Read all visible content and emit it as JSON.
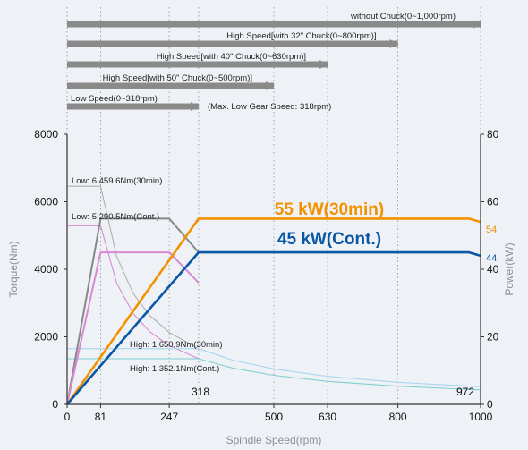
{
  "chart_data": {
    "type": "line",
    "xlabel": "Spindle Speed(rpm)",
    "ylabel_left": "Torque(Nm)",
    "ylabel_right": "Power(kW)",
    "xlim": [
      0,
      1000
    ],
    "ylim_left": [
      0,
      8000
    ],
    "ylim_right": [
      0,
      80
    ],
    "x_ticks": [
      "0",
      "81",
      "247",
      "500",
      "630",
      "800",
      "1000"
    ],
    "x_tick_values": [
      0,
      81,
      247,
      500,
      630,
      800,
      1000
    ],
    "y_left_ticks": [
      0,
      2000,
      4000,
      6000,
      8000
    ],
    "y_right_ticks": [
      0,
      20,
      40,
      60,
      80
    ],
    "grid": "dotted vertical at 81, 247, 318, 500, 630, 800, 1000",
    "speed_ranges": [
      {
        "label": "without Chuck(0~1,000rpm)",
        "max_rpm": 1000
      },
      {
        "label": "High Speed[with 32\" Chuck(0~800rpm)]",
        "max_rpm": 800
      },
      {
        "label": "High Speed[with 40\" Chuck(0~630rpm)]",
        "max_rpm": 630
      },
      {
        "label": "High Speed[with 50\" Chuck(0~500rpm)]",
        "max_rpm": 500
      },
      {
        "label": "Low Speed(0~318rpm)",
        "max_rpm": 318
      }
    ],
    "low_gear_note": "(Max. Low Gear Speed: 318rpm)",
    "power_labels": {
      "p30": "55 kW(30min)",
      "pcont": "45 kW(Cont.)"
    },
    "power_end_labels": {
      "p30": "54",
      "pcont": "44"
    },
    "annotations": {
      "low30": "Low: 6,459.6Nm(30min)",
      "lowcont": "Low: 5,290.5Nm(Cont.)",
      "high30": "High: 1,650.9Nm(30min)",
      "highcont": "High: 1,352.1Nm(Cont.)",
      "x318": "318",
      "x972": "972"
    },
    "series": [
      {
        "name": "55 kW(30min)",
        "axis": "right",
        "color": "#f39200",
        "points": [
          [
            0,
            0
          ],
          [
            318,
            55
          ],
          [
            972,
            55
          ],
          [
            1000,
            54
          ]
        ]
      },
      {
        "name": "45 kW(Cont.)",
        "axis": "right",
        "color": "#0a57a5",
        "points": [
          [
            0,
            0
          ],
          [
            318,
            45
          ],
          [
            972,
            45
          ],
          [
            1000,
            44
          ]
        ]
      },
      {
        "axis": "right",
        "color": "#888888",
        "points": [
          [
            0,
            0
          ],
          [
            81,
            55
          ],
          [
            247,
            55
          ],
          [
            318,
            45
          ]
        ]
      },
      {
        "axis": "right",
        "color": "#d98ad3",
        "points": [
          [
            0,
            0
          ],
          [
            81,
            45
          ],
          [
            247,
            45
          ],
          [
            318,
            36
          ]
        ]
      },
      {
        "axis": "left",
        "color": "#b0b0b0",
        "points": [
          [
            0,
            6459.6
          ],
          [
            81,
            6459.6
          ],
          [
            120,
            4380
          ],
          [
            160,
            3280
          ],
          [
            200,
            2630
          ],
          [
            247,
            2130
          ],
          [
            318,
            1650
          ]
        ]
      },
      {
        "axis": "left",
        "color": "#d98ad3",
        "points": [
          [
            0,
            5290.5
          ],
          [
            81,
            5290.5
          ],
          [
            120,
            3590
          ],
          [
            160,
            2690
          ],
          [
            200,
            2150
          ],
          [
            247,
            1740
          ],
          [
            318,
            1352
          ]
        ]
      },
      {
        "axis": "left",
        "color": "#a9d6ef",
        "points": [
          [
            0,
            1650.9
          ],
          [
            318,
            1650.9
          ],
          [
            400,
            1310
          ],
          [
            500,
            1050
          ],
          [
            630,
            830
          ],
          [
            800,
            655
          ],
          [
            972,
            540
          ],
          [
            1000,
            525
          ]
        ]
      },
      {
        "axis": "left",
        "color": "#7fd0d0",
        "points": [
          [
            0,
            1352.1
          ],
          [
            318,
            1352.1
          ],
          [
            400,
            1075
          ],
          [
            500,
            860
          ],
          [
            630,
            680
          ],
          [
            800,
            537
          ],
          [
            972,
            442
          ],
          [
            1000,
            430
          ]
        ]
      }
    ]
  }
}
